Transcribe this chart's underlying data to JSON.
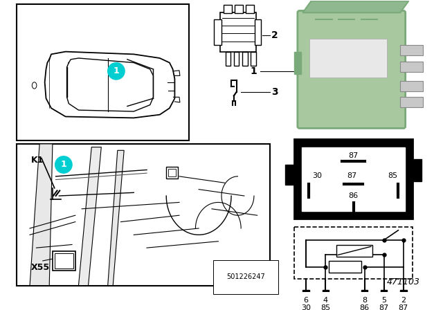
{
  "bg_color": "#ffffff",
  "diagram_number": "471103",
  "watermark": "501226247",
  "teal_color": "#00CED1",
  "relay_green": "#a8c8a0",
  "relay_green_dark": "#7aaa7a",
  "relay_green_top": "#90b890",
  "pin_labels_top": [
    "6",
    "4",
    "8",
    "5",
    "2"
  ],
  "pin_labels_bot": [
    "30",
    "85",
    "86",
    "87",
    "87"
  ],
  "item2_label": "2",
  "item3_label": "3",
  "item1_label": "1",
  "k1_label": "K1",
  "x55_label": "X55"
}
